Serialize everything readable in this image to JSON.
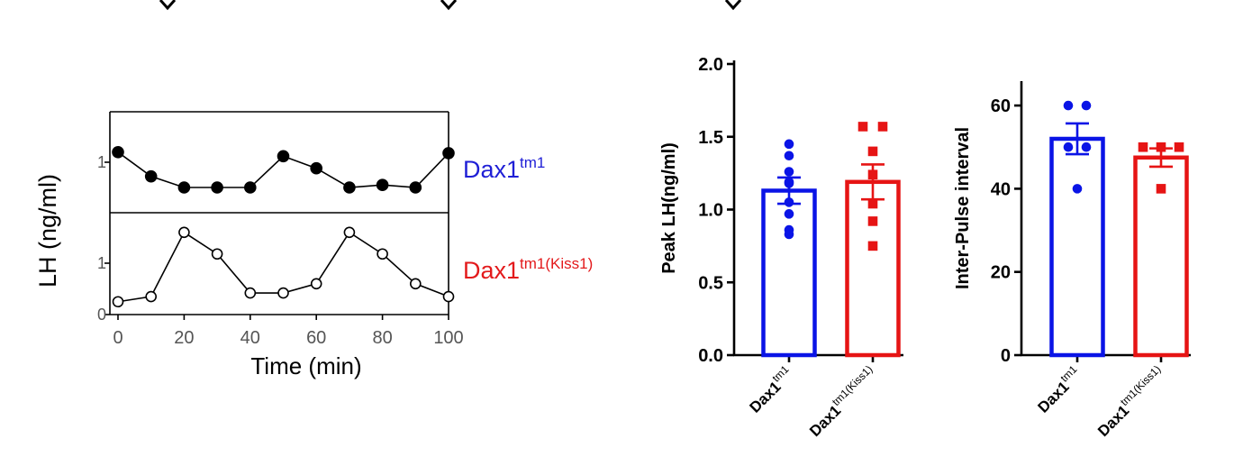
{
  "chart_data": [
    {
      "type": "line",
      "title": "",
      "xlabel": "Time (min)",
      "ylabel": "LH (ng/ml)",
      "x": [
        0,
        10,
        20,
        30,
        40,
        50,
        60,
        70,
        80,
        90,
        100
      ],
      "xticks": [
        "0",
        "20",
        "40",
        "60",
        "80",
        "100"
      ],
      "panels": [
        {
          "label_base": "Dax1",
          "label_sup": "tm1",
          "label_color": "#1f1fd6",
          "marker": "filled",
          "ylim": [
            0,
            1.7
          ],
          "yticks": [
            "1"
          ],
          "values": [
            1.2,
            0.72,
            0.5,
            0.5,
            0.5,
            1.12,
            0.88,
            0.5,
            0.55,
            0.5,
            1.18
          ]
        },
        {
          "label_base": "Dax1",
          "label_sup": "tm1(Kiss1)",
          "label_color": "#e31a1c",
          "marker": "open",
          "ylim": [
            0,
            1.7
          ],
          "yticks": [
            "0",
            "1"
          ],
          "values": [
            0.25,
            0.35,
            1.6,
            1.18,
            0.42,
            0.42,
            0.6,
            1.6,
            1.18,
            0.6,
            0.35
          ]
        }
      ]
    },
    {
      "type": "bar",
      "ylabel": "Peak LH(ng/ml)",
      "ylim": [
        0,
        2.0
      ],
      "yticks": [
        "0.0",
        "0.5",
        "1.0",
        "1.5",
        "2.0"
      ],
      "categories": [
        {
          "base": "Dax1",
          "sup": "tm1",
          "color": "#0a14e6",
          "marker": "circle"
        },
        {
          "base": "Dax1",
          "sup": "tm1(Kiss1)",
          "color": "#e61414",
          "marker": "square"
        }
      ],
      "means": [
        1.13,
        1.19
      ],
      "sem": [
        0.09,
        0.12
      ],
      "points": [
        [
          1.45,
          1.37,
          1.26,
          1.19,
          1.18,
          1.05,
          0.97,
          0.86,
          0.83
        ],
        [
          1.57,
          1.57,
          1.4,
          1.24,
          1.04,
          0.92,
          0.75
        ]
      ]
    },
    {
      "type": "bar",
      "ylabel": "Inter-Pulse interval",
      "ylim": [
        0,
        65
      ],
      "yticks": [
        "0",
        "20",
        "40",
        "60"
      ],
      "categories": [
        {
          "base": "Dax1",
          "sup": "tm1",
          "color": "#0a14e6",
          "marker": "circle"
        },
        {
          "base": "Dax1",
          "sup": "tm1(Kiss1)",
          "color": "#e61414",
          "marker": "square"
        }
      ],
      "means": [
        52,
        47.5
      ],
      "sem": [
        3.7,
        2.2
      ],
      "points": [
        [
          60,
          60,
          50,
          50,
          40
        ],
        [
          50,
          50,
          50,
          40
        ]
      ]
    }
  ]
}
